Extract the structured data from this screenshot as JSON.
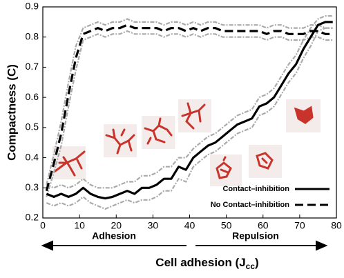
{
  "chart_data": {
    "type": "line",
    "ylabel": "Compactness (C)",
    "xlabel_parts": [
      "Cell adhesion (J",
      "cc",
      ")"
    ],
    "annotations": [
      "Adhesion",
      "Repulsion"
    ],
    "xlim": [
      0,
      80
    ],
    "xticks": [
      0,
      10,
      20,
      30,
      40,
      50,
      60,
      70,
      80
    ],
    "ylim": [
      0.2,
      0.9
    ],
    "yticks": [
      0.2,
      0.3,
      0.4,
      0.5,
      0.6,
      0.7,
      0.8,
      0.9
    ],
    "legend": "lower right",
    "band_color": "#aaaaaa",
    "x": [
      1,
      3,
      5,
      7,
      9,
      11,
      13,
      15,
      17,
      19,
      21,
      23,
      25,
      27,
      29,
      31,
      33,
      35,
      37,
      39,
      41,
      43,
      45,
      47,
      49,
      51,
      53,
      55,
      57,
      59,
      61,
      63,
      65,
      67,
      69,
      71,
      73,
      75,
      77,
      79
    ],
    "series": [
      {
        "name": "Contact–inhibition",
        "color": "#000000",
        "style": "solid",
        "values": [
          0.28,
          0.27,
          0.28,
          0.27,
          0.28,
          0.3,
          0.28,
          0.27,
          0.265,
          0.27,
          0.28,
          0.29,
          0.28,
          0.3,
          0.3,
          0.31,
          0.33,
          0.33,
          0.37,
          0.36,
          0.4,
          0.42,
          0.44,
          0.45,
          0.47,
          0.49,
          0.51,
          0.52,
          0.53,
          0.57,
          0.58,
          0.6,
          0.64,
          0.68,
          0.71,
          0.76,
          0.8,
          0.84,
          0.85,
          0.85
        ],
        "upper": [
          0.31,
          0.3,
          0.31,
          0.3,
          0.31,
          0.33,
          0.31,
          0.3,
          0.3,
          0.3,
          0.31,
          0.32,
          0.32,
          0.34,
          0.34,
          0.35,
          0.37,
          0.37,
          0.4,
          0.4,
          0.43,
          0.45,
          0.47,
          0.48,
          0.5,
          0.52,
          0.54,
          0.55,
          0.56,
          0.6,
          0.61,
          0.63,
          0.67,
          0.71,
          0.74,
          0.79,
          0.83,
          0.86,
          0.87,
          0.87
        ],
        "lower": [
          0.25,
          0.24,
          0.25,
          0.24,
          0.25,
          0.27,
          0.25,
          0.24,
          0.23,
          0.24,
          0.25,
          0.26,
          0.25,
          0.26,
          0.26,
          0.27,
          0.29,
          0.29,
          0.33,
          0.32,
          0.37,
          0.39,
          0.41,
          0.42,
          0.44,
          0.46,
          0.48,
          0.49,
          0.5,
          0.54,
          0.55,
          0.57,
          0.61,
          0.65,
          0.68,
          0.73,
          0.77,
          0.82,
          0.83,
          0.83
        ]
      },
      {
        "name": "No Contact–inhibition",
        "color": "#000000",
        "style": "dashed",
        "values": [
          0.29,
          0.38,
          0.48,
          0.61,
          0.73,
          0.81,
          0.82,
          0.83,
          0.82,
          0.83,
          0.83,
          0.84,
          0.83,
          0.83,
          0.83,
          0.83,
          0.82,
          0.83,
          0.83,
          0.82,
          0.83,
          0.82,
          0.83,
          0.83,
          0.82,
          0.82,
          0.82,
          0.82,
          0.82,
          0.82,
          0.81,
          0.82,
          0.82,
          0.81,
          0.81,
          0.81,
          0.82,
          0.82,
          0.81,
          0.81
        ],
        "upper": [
          0.31,
          0.41,
          0.52,
          0.65,
          0.77,
          0.83,
          0.84,
          0.85,
          0.84,
          0.85,
          0.85,
          0.86,
          0.85,
          0.85,
          0.85,
          0.85,
          0.84,
          0.85,
          0.85,
          0.84,
          0.85,
          0.84,
          0.85,
          0.85,
          0.84,
          0.84,
          0.84,
          0.84,
          0.84,
          0.84,
          0.83,
          0.84,
          0.84,
          0.83,
          0.83,
          0.83,
          0.84,
          0.84,
          0.83,
          0.83
        ],
        "lower": [
          0.27,
          0.35,
          0.44,
          0.57,
          0.69,
          0.79,
          0.8,
          0.81,
          0.8,
          0.81,
          0.81,
          0.82,
          0.81,
          0.81,
          0.81,
          0.81,
          0.8,
          0.81,
          0.81,
          0.8,
          0.81,
          0.8,
          0.81,
          0.81,
          0.8,
          0.8,
          0.8,
          0.8,
          0.8,
          0.8,
          0.79,
          0.8,
          0.8,
          0.79,
          0.79,
          0.79,
          0.8,
          0.8,
          0.79,
          0.79
        ]
      }
    ]
  }
}
